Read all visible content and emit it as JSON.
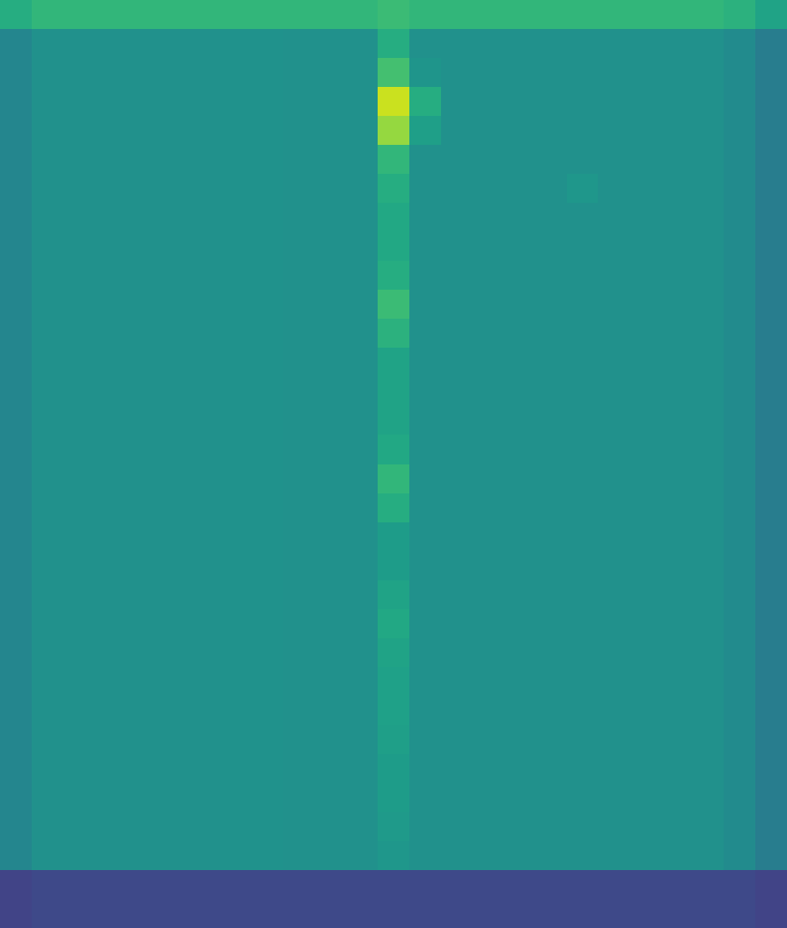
{
  "chart_data": {
    "type": "heatmap",
    "color": "viridis",
    "tick_labels": false,
    "zlim": [
      0,
      100
    ],
    "cells": [
      [
        62,
        66,
        66,
        66,
        66,
        66,
        66,
        66,
        66,
        66,
        66,
        66,
        68,
        66,
        66,
        66,
        66,
        66,
        66,
        66,
        66,
        66,
        66,
        64,
        58
      ],
      [
        46,
        50,
        50,
        50,
        50,
        50,
        50,
        51,
        51,
        50,
        50,
        50,
        62,
        50,
        50,
        50,
        50,
        50,
        50,
        50,
        50,
        50,
        50,
        48,
        42
      ],
      [
        46,
        50,
        50,
        50,
        50,
        50,
        50,
        51,
        51,
        50,
        50,
        50,
        70,
        52,
        50,
        50,
        50,
        50,
        50,
        50,
        50,
        50,
        50,
        48,
        42
      ],
      [
        46,
        50,
        50,
        50,
        50,
        50,
        50,
        51,
        51,
        50,
        50,
        50,
        92,
        62,
        50,
        50,
        50,
        50,
        50,
        50,
        50,
        50,
        50,
        48,
        42
      ],
      [
        46,
        50,
        50,
        50,
        50,
        50,
        50,
        51,
        51,
        50,
        50,
        50,
        84,
        56,
        50,
        50,
        50,
        50,
        50,
        50,
        50,
        50,
        50,
        48,
        42
      ],
      [
        46,
        50,
        50,
        50,
        50,
        50,
        50,
        51,
        51,
        50,
        50,
        50,
        66,
        50,
        50,
        50,
        50,
        50,
        50,
        50,
        50,
        50,
        50,
        48,
        42
      ],
      [
        46,
        50,
        50,
        50,
        50,
        50,
        50,
        51,
        51,
        50,
        50,
        50,
        62,
        50,
        50,
        50,
        50,
        50,
        53,
        50,
        50,
        50,
        50,
        48,
        42
      ],
      [
        46,
        50,
        50,
        50,
        50,
        50,
        50,
        51,
        51,
        50,
        50,
        50,
        60,
        50,
        50,
        50,
        50,
        50,
        50,
        50,
        50,
        50,
        50,
        48,
        42
      ],
      [
        46,
        50,
        50,
        50,
        50,
        50,
        50,
        51,
        51,
        50,
        50,
        50,
        60,
        50,
        50,
        50,
        50,
        50,
        50,
        50,
        50,
        50,
        50,
        48,
        42
      ],
      [
        46,
        50,
        50,
        50,
        50,
        50,
        50,
        51,
        51,
        50,
        50,
        50,
        62,
        50,
        50,
        50,
        50,
        50,
        50,
        50,
        50,
        50,
        50,
        48,
        42
      ],
      [
        46,
        50,
        50,
        50,
        50,
        50,
        50,
        51,
        51,
        50,
        50,
        50,
        68,
        50,
        50,
        50,
        50,
        50,
        50,
        50,
        50,
        50,
        50,
        48,
        42
      ],
      [
        46,
        50,
        50,
        50,
        50,
        50,
        50,
        51,
        51,
        50,
        50,
        50,
        64,
        50,
        50,
        50,
        50,
        50,
        50,
        50,
        50,
        50,
        50,
        48,
        42
      ],
      [
        46,
        50,
        50,
        50,
        50,
        50,
        50,
        51,
        51,
        50,
        50,
        50,
        58,
        50,
        50,
        50,
        50,
        50,
        50,
        50,
        50,
        50,
        50,
        48,
        42
      ],
      [
        46,
        50,
        50,
        50,
        50,
        50,
        50,
        51,
        51,
        50,
        50,
        50,
        58,
        50,
        50,
        50,
        50,
        50,
        50,
        50,
        50,
        50,
        50,
        48,
        42
      ],
      [
        46,
        50,
        50,
        50,
        50,
        50,
        50,
        51,
        51,
        50,
        50,
        50,
        58,
        50,
        50,
        50,
        50,
        50,
        50,
        50,
        50,
        50,
        50,
        48,
        42
      ],
      [
        46,
        50,
        50,
        50,
        50,
        50,
        50,
        51,
        51,
        50,
        50,
        50,
        60,
        50,
        50,
        50,
        50,
        50,
        50,
        50,
        50,
        50,
        50,
        48,
        42
      ],
      [
        46,
        50,
        50,
        50,
        50,
        50,
        50,
        51,
        51,
        50,
        50,
        50,
        66,
        50,
        50,
        50,
        50,
        50,
        50,
        50,
        50,
        50,
        50,
        48,
        42
      ],
      [
        46,
        50,
        50,
        50,
        50,
        50,
        50,
        51,
        51,
        50,
        50,
        50,
        62,
        50,
        50,
        50,
        50,
        50,
        50,
        50,
        50,
        50,
        50,
        48,
        42
      ],
      [
        46,
        50,
        50,
        50,
        50,
        50,
        50,
        51,
        51,
        50,
        50,
        50,
        55,
        50,
        50,
        50,
        50,
        50,
        50,
        50,
        50,
        50,
        50,
        48,
        42
      ],
      [
        46,
        50,
        50,
        50,
        50,
        50,
        50,
        51,
        51,
        50,
        50,
        50,
        55,
        50,
        50,
        50,
        50,
        50,
        50,
        50,
        50,
        50,
        50,
        48,
        42
      ],
      [
        46,
        50,
        50,
        50,
        50,
        50,
        50,
        51,
        51,
        50,
        50,
        50,
        58,
        50,
        50,
        50,
        50,
        50,
        50,
        50,
        50,
        50,
        50,
        48,
        42
      ],
      [
        46,
        50,
        50,
        50,
        50,
        50,
        50,
        51,
        51,
        50,
        50,
        50,
        60,
        50,
        50,
        50,
        50,
        50,
        50,
        50,
        50,
        50,
        50,
        48,
        42
      ],
      [
        46,
        50,
        50,
        50,
        50,
        50,
        50,
        51,
        51,
        50,
        50,
        50,
        58,
        50,
        50,
        50,
        50,
        50,
        50,
        50,
        50,
        50,
        50,
        48,
        42
      ],
      [
        46,
        50,
        50,
        50,
        50,
        50,
        50,
        51,
        51,
        50,
        50,
        50,
        57,
        50,
        50,
        50,
        50,
        50,
        50,
        50,
        50,
        50,
        50,
        48,
        42
      ],
      [
        46,
        50,
        50,
        50,
        50,
        50,
        50,
        51,
        51,
        50,
        50,
        50,
        57,
        50,
        50,
        50,
        50,
        50,
        50,
        50,
        50,
        50,
        50,
        48,
        42
      ],
      [
        46,
        50,
        50,
        50,
        50,
        50,
        50,
        51,
        51,
        50,
        50,
        50,
        56,
        50,
        50,
        50,
        50,
        50,
        50,
        50,
        50,
        50,
        50,
        48,
        42
      ],
      [
        46,
        50,
        50,
        50,
        50,
        50,
        50,
        51,
        51,
        50,
        50,
        50,
        55,
        50,
        50,
        50,
        50,
        50,
        50,
        50,
        50,
        50,
        50,
        48,
        42
      ],
      [
        46,
        50,
        50,
        50,
        50,
        50,
        50,
        51,
        51,
        50,
        50,
        50,
        55,
        50,
        50,
        50,
        50,
        50,
        50,
        50,
        50,
        50,
        50,
        48,
        42
      ],
      [
        46,
        50,
        50,
        50,
        50,
        50,
        50,
        51,
        51,
        50,
        50,
        50,
        54,
        50,
        50,
        50,
        50,
        50,
        50,
        50,
        50,
        50,
        50,
        48,
        42
      ],
      [
        46,
        50,
        50,
        50,
        50,
        50,
        50,
        51,
        51,
        50,
        50,
        50,
        53,
        50,
        50,
        50,
        50,
        50,
        50,
        50,
        50,
        50,
        50,
        48,
        42
      ],
      [
        20,
        22,
        22,
        22,
        22,
        22,
        22,
        22,
        22,
        22,
        22,
        22,
        22,
        22,
        22,
        22,
        22,
        22,
        22,
        22,
        22,
        22,
        22,
        22,
        20
      ],
      [
        20,
        22,
        22,
        22,
        22,
        22,
        22,
        22,
        22,
        22,
        22,
        22,
        22,
        22,
        22,
        22,
        22,
        22,
        22,
        22,
        22,
        22,
        22,
        22,
        20
      ]
    ]
  }
}
